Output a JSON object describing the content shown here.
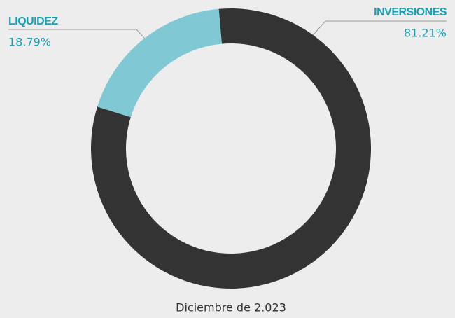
{
  "chart_data": {
    "type": "pie",
    "donut": true,
    "categories": [
      "LIQUIDEZ",
      "INVERSIONES"
    ],
    "values": [
      18.79,
      81.21
    ],
    "value_labels": [
      "18.79%",
      "81.21%"
    ],
    "colors": [
      "#80c8d4",
      "#333333"
    ],
    "caption": "Diciembre de 2.023"
  }
}
